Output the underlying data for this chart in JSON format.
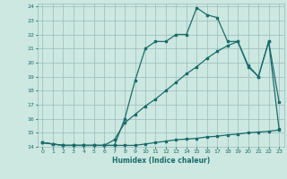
{
  "title": "",
  "xlabel": "Humidex (Indice chaleur)",
  "bg_color": "#cce8e0",
  "grid_color": "#99bbbb",
  "line_color": "#1a6b6b",
  "xlim": [
    -0.5,
    23.5
  ],
  "ylim": [
    14,
    24.2
  ],
  "xticks": [
    0,
    1,
    2,
    3,
    4,
    5,
    6,
    7,
    8,
    9,
    10,
    11,
    12,
    13,
    14,
    15,
    16,
    17,
    18,
    19,
    20,
    21,
    22,
    23
  ],
  "yticks": [
    14,
    15,
    16,
    17,
    18,
    19,
    20,
    21,
    22,
    23,
    24
  ],
  "line1_x": [
    0,
    1,
    2,
    3,
    4,
    5,
    6,
    7,
    8,
    9,
    10,
    11,
    12,
    13,
    14,
    15,
    16,
    17,
    18,
    19,
    20,
    21,
    22,
    23
  ],
  "line1_y": [
    14.3,
    14.2,
    14.1,
    14.1,
    14.1,
    14.1,
    14.1,
    14.1,
    14.1,
    14.1,
    14.2,
    14.3,
    14.4,
    14.5,
    14.55,
    14.6,
    14.7,
    14.75,
    14.85,
    14.9,
    15.0,
    15.05,
    15.1,
    15.2
  ],
  "line2_x": [
    0,
    1,
    2,
    3,
    4,
    5,
    6,
    7,
    8,
    9,
    10,
    11,
    12,
    13,
    14,
    15,
    16,
    17,
    18,
    19,
    20,
    21,
    22,
    23
  ],
  "line2_y": [
    14.3,
    14.2,
    14.1,
    14.1,
    14.1,
    14.1,
    14.1,
    14.1,
    16.0,
    18.7,
    21.0,
    21.5,
    21.5,
    22.0,
    22.0,
    23.9,
    23.4,
    23.2,
    21.5,
    21.5,
    19.8,
    19.0,
    21.5,
    17.2
  ],
  "line3_x": [
    0,
    1,
    2,
    3,
    4,
    5,
    6,
    7,
    8,
    9,
    10,
    11,
    12,
    13,
    14,
    15,
    16,
    17,
    18,
    19,
    20,
    21,
    22,
    23
  ],
  "line3_y": [
    14.3,
    14.2,
    14.1,
    14.1,
    14.1,
    14.1,
    14.1,
    14.5,
    15.7,
    16.3,
    16.9,
    17.4,
    18.0,
    18.6,
    19.2,
    19.7,
    20.3,
    20.8,
    21.2,
    21.5,
    19.7,
    19.0,
    21.5,
    15.3
  ]
}
